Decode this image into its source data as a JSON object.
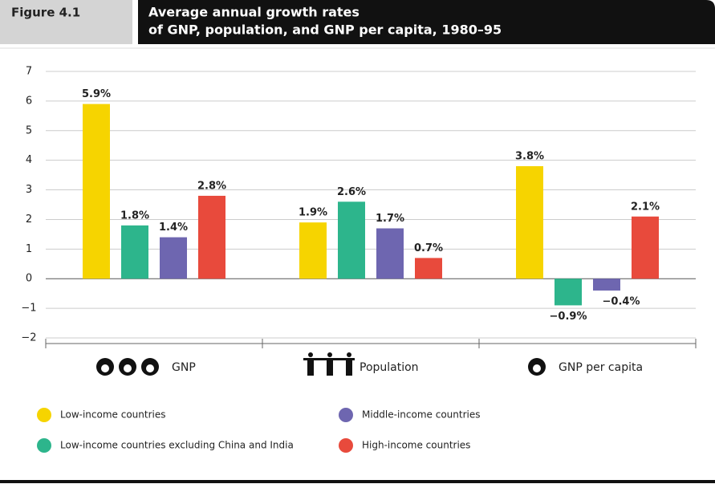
{
  "chart_data": {
    "type": "bar",
    "figure_label": "Figure 4.1",
    "title": [
      "Average annual growth rates",
      "of GNP, population, and GNP per capita, 1980–95"
    ],
    "categories": [
      "GNP",
      "Population",
      "GNP per capita"
    ],
    "series": [
      {
        "name": "Low-income countries",
        "color": "#f6d400",
        "values": [
          5.9,
          1.9,
          3.8
        ],
        "value_labels": [
          "5.9%",
          "1.9%",
          "3.8%"
        ]
      },
      {
        "name": "Low-income countries excluding China and India",
        "color": "#2db58c",
        "values": [
          1.8,
          2.6,
          -0.9
        ],
        "value_labels": [
          "1.8%",
          "2.6%",
          "−0.9%"
        ]
      },
      {
        "name": "Middle-income countries",
        "color": "#6e66b0",
        "values": [
          1.4,
          1.7,
          -0.4
        ],
        "value_labels": [
          "1.4%",
          "1.7%",
          "−0.4%"
        ]
      },
      {
        "name": "High-income countries",
        "color": "#e84a3c",
        "values": [
          2.8,
          0.7,
          2.1
        ],
        "value_labels": [
          "2.8%",
          "0.7%",
          "2.1%"
        ]
      }
    ],
    "ylim": [
      -2,
      7
    ],
    "yticks": [
      {
        "value": -2,
        "label": "−2"
      },
      {
        "value": -1,
        "label": "−1"
      },
      0,
      1,
      2,
      3,
      4,
      5,
      6,
      7
    ],
    "grid": true
  }
}
